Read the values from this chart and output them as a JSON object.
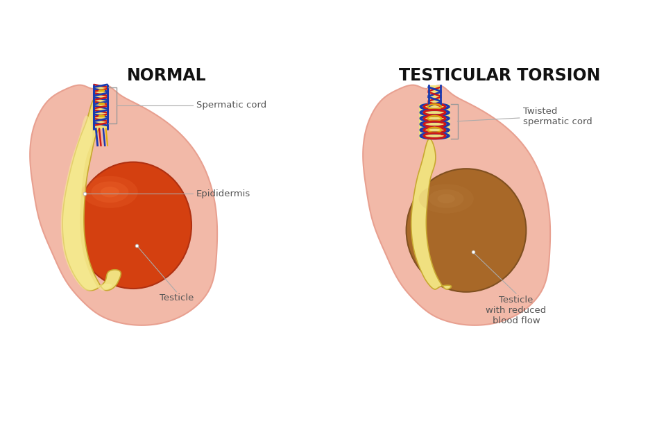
{
  "bg_color": "#ffffff",
  "skin_color": "#f2b9a8",
  "skin_edge": "#e8a090",
  "skin_dark": "#e8a090",
  "epididymis_color": "#f0e080",
  "epididymis_edge": "#c8a830",
  "epididymis_inner": "#e8d060",
  "testicle_normal": "#d44010",
  "testicle_normal_edge": "#b03010",
  "testicle_torsion": "#a86828",
  "testicle_torsion_edge": "#805020",
  "vessel_blue": "#1a3ab0",
  "vessel_red": "#cc1818",
  "vessel_yellow": "#e0b010",
  "label_color": "#555555",
  "line_color": "#aaaaaa",
  "title_left": "NORMAL",
  "title_right": "TESTICULAR TORSION",
  "label_spermatic": "Spermatic cord",
  "label_epididermis": "Epididermis",
  "label_testicle": "Testicle",
  "label_twisted": "Twisted\nspermatic cord",
  "label_testicle_torsion": "Testicle\nwith reduced\nblood flow"
}
